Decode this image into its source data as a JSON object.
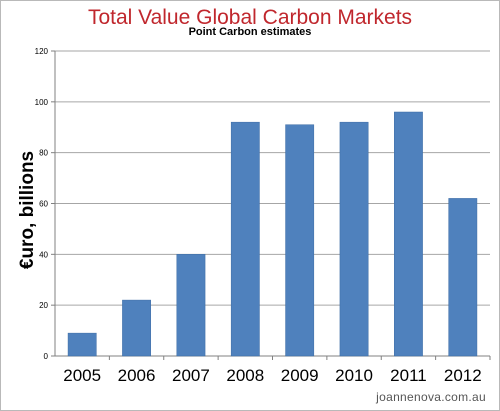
{
  "chart_data": {
    "type": "bar",
    "title": "Total Value Global Carbon Markets",
    "subtitle": "Point Carbon  estimates",
    "xlabel": "",
    "ylabel": "€uro, billions",
    "categories": [
      "2005",
      "2006",
      "2007",
      "2008",
      "2009",
      "2010",
      "2011",
      "2012"
    ],
    "values": [
      9,
      22,
      40,
      92,
      91,
      92,
      96,
      62
    ],
    "ylim": [
      0,
      120
    ],
    "yticks": [
      0,
      20,
      40,
      60,
      80,
      100,
      120
    ],
    "grid": true,
    "legend": "none",
    "bar_color": "#4f81bd",
    "title_color": "#c0272d"
  },
  "credit": "joannenova.com.au"
}
